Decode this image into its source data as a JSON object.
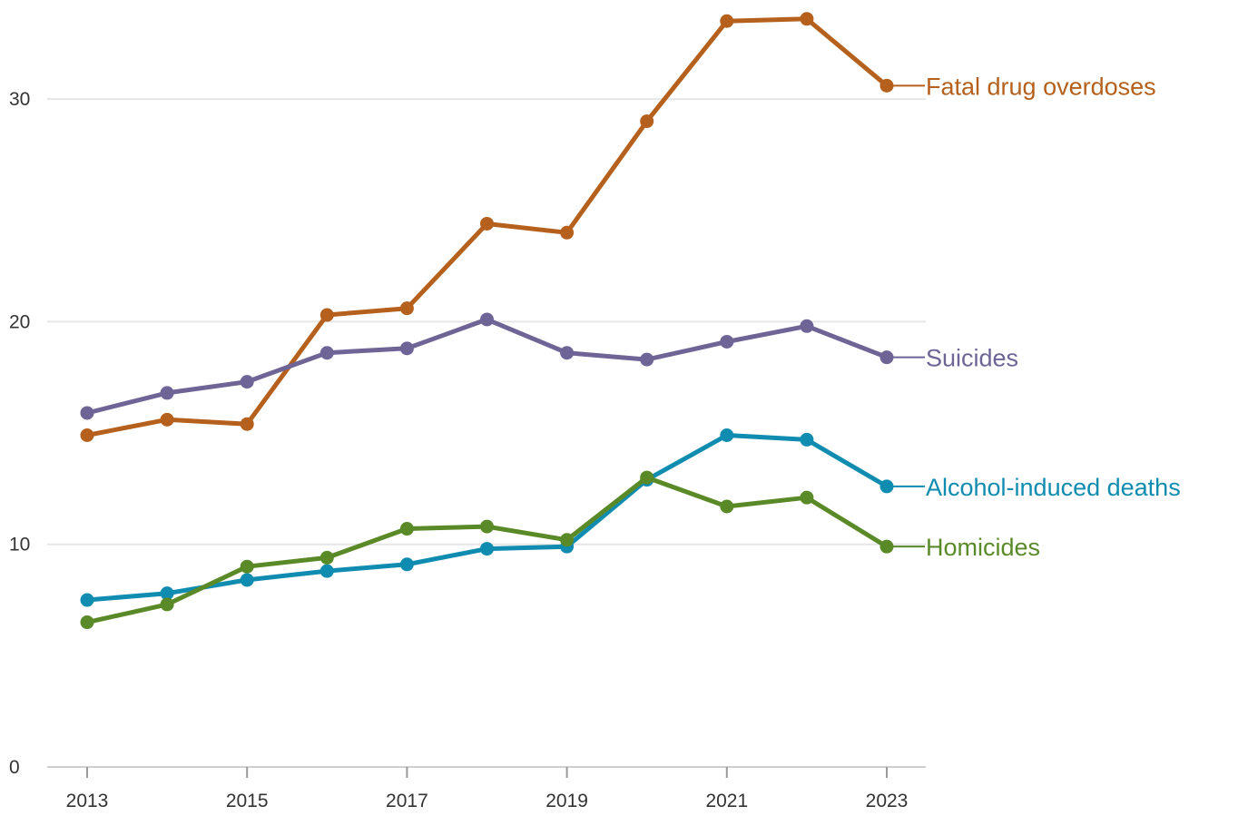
{
  "chart_data": {
    "type": "line",
    "title": "",
    "xlabel": "",
    "ylabel": "",
    "x": [
      2013,
      2014,
      2015,
      2016,
      2017,
      2018,
      2019,
      2020,
      2021,
      2022,
      2023
    ],
    "xticks": [
      "2013",
      "2015",
      "2017",
      "2019",
      "2021",
      "2023"
    ],
    "yticks": [
      "0",
      "10",
      "20",
      "30"
    ],
    "ylim": [
      0,
      34
    ],
    "grid": true,
    "legend": "direct labels at right end of lines",
    "series": [
      {
        "name": "Fatal drug overdoses",
        "color": "#b5601c",
        "values": [
          14.9,
          15.6,
          15.4,
          20.3,
          20.6,
          24.4,
          24.0,
          29.0,
          33.5,
          33.6,
          30.6
        ]
      },
      {
        "name": "Suicides",
        "color": "#6e6496",
        "values": [
          15.9,
          16.8,
          17.3,
          18.6,
          18.8,
          20.1,
          18.6,
          18.3,
          19.1,
          19.8,
          18.4
        ]
      },
      {
        "name": "Alcohol-induced deaths",
        "color": "#0f8cb0",
        "values": [
          7.5,
          7.8,
          8.4,
          8.8,
          9.1,
          9.8,
          9.9,
          12.9,
          14.9,
          14.7,
          12.6
        ]
      },
      {
        "name": "Homicides",
        "color": "#5a8a28",
        "values": [
          6.5,
          7.3,
          9.0,
          9.4,
          10.7,
          10.8,
          10.2,
          13.0,
          11.7,
          12.1,
          9.9
        ]
      }
    ]
  }
}
